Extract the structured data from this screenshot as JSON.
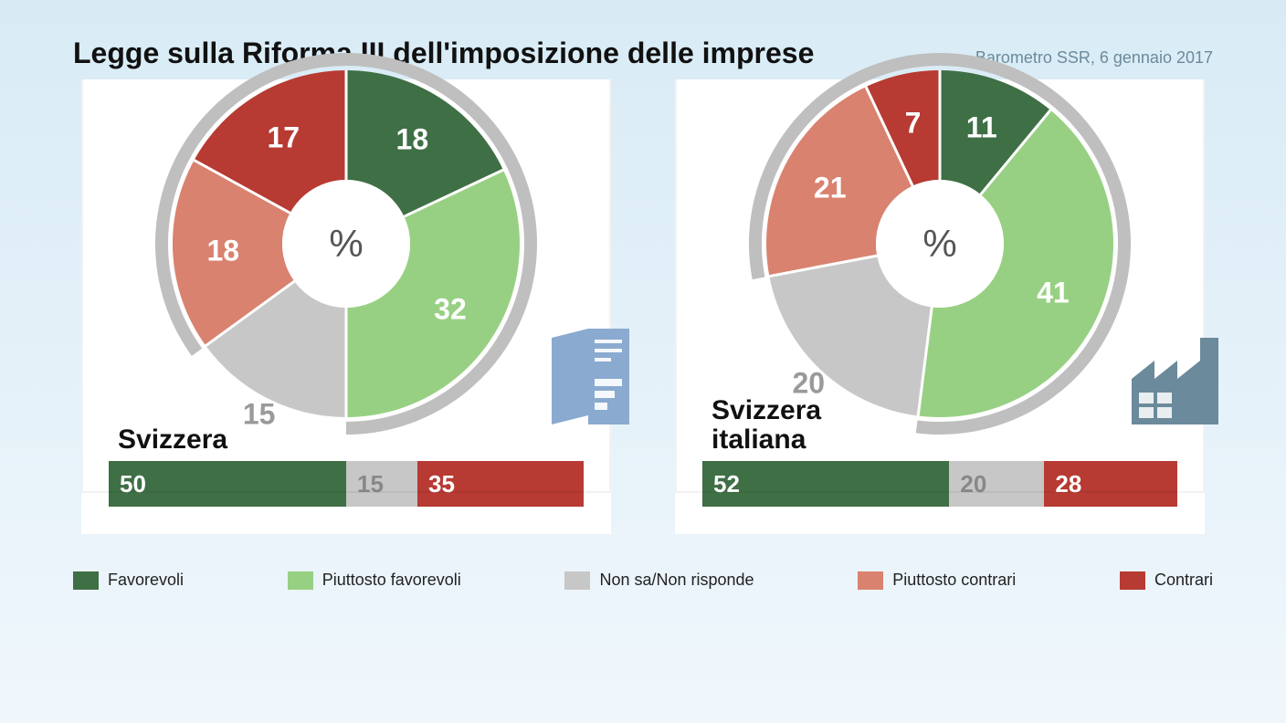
{
  "title": "Legge sulla Riforma III dell'imposizione delle imprese",
  "subtitle": "Barometro SSR, 6 gennaio 2017",
  "center_label": "%",
  "colors": {
    "favorevoli": "#3f6f45",
    "piuttosto_favorevoli": "#98d083",
    "non_sa": "#c7c7c7",
    "piuttosto_contrari": "#d9826f",
    "contrari": "#b73a33",
    "background": "#e8f2f8",
    "panel": "#ffffff",
    "arc_gray": "#bfbfbf",
    "text_dark": "#111111",
    "text_muted": "#6b8a9c",
    "icon_blue": "#8aaad0",
    "icon_steel": "#6b8a9c"
  },
  "legend": [
    {
      "key": "favorevoli",
      "label": "Favorevoli"
    },
    {
      "key": "piuttosto_favorevoli",
      "label": "Piuttosto favorevoli"
    },
    {
      "key": "non_sa",
      "label": "Non sa/Non risponde"
    },
    {
      "key": "piuttosto_contrari",
      "label": "Piuttosto contrari"
    },
    {
      "key": "contrari",
      "label": "Contrari"
    }
  ],
  "typography": {
    "title_fontsize": 32,
    "subtitle_fontsize": 18,
    "slice_label_fontsize": 32,
    "bar_label_fontsize": 26,
    "legend_fontsize": 18,
    "chart_label_fontsize": 30,
    "center_fontsize": 42
  },
  "chart_style": {
    "type": "donut",
    "outer_radius": 190,
    "inner_radius": 70,
    "start_angle_deg": -90,
    "direction": "clockwise",
    "gap_stroke": "#ffffff",
    "gap_width": 3,
    "outer_arc_radius": 202,
    "outer_arc_width": 14,
    "label_radius": 135
  },
  "panels": [
    {
      "label": "Svizzera",
      "icon": "document",
      "slices": [
        {
          "key": "favorevoli",
          "value": 18
        },
        {
          "key": "piuttosto_favorevoli",
          "value": 32
        },
        {
          "key": "non_sa",
          "value": 15
        },
        {
          "key": "piuttosto_contrari",
          "value": 18
        },
        {
          "key": "contrari",
          "value": 17
        }
      ],
      "bar": [
        {
          "key": "favorevoli",
          "value": 50
        },
        {
          "key": "non_sa",
          "value": 15
        },
        {
          "key": "contrari",
          "value": 35
        }
      ]
    },
    {
      "label": "Svizzera\nitaliana",
      "icon": "factory",
      "slices": [
        {
          "key": "favorevoli",
          "value": 11
        },
        {
          "key": "piuttosto_favorevoli",
          "value": 41
        },
        {
          "key": "non_sa",
          "value": 20
        },
        {
          "key": "piuttosto_contrari",
          "value": 21
        },
        {
          "key": "contrari",
          "value": 7
        }
      ],
      "bar": [
        {
          "key": "favorevoli",
          "value": 52
        },
        {
          "key": "non_sa",
          "value": 20
        },
        {
          "key": "contrari",
          "value": 28
        }
      ]
    }
  ],
  "label_text_colors": {
    "favorevoli": "#ffffff",
    "piuttosto_favorevoli": "#ffffff",
    "non_sa": "#9a9a9a",
    "piuttosto_contrari": "#ffffff",
    "contrari": "#ffffff"
  }
}
